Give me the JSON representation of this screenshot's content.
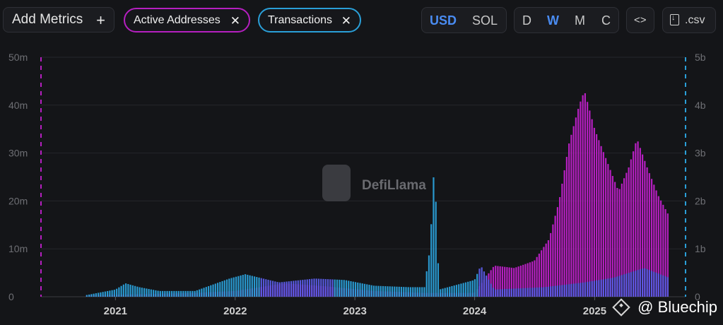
{
  "toolbar": {
    "add_metrics_label": "Add Metrics",
    "add_icon": "+",
    "metric_chips": [
      {
        "label": "Active Addresses",
        "color": "#b51fc0"
      },
      {
        "label": "Transactions",
        "color": "#2a9fd8"
      }
    ],
    "remove_icon": "✕",
    "currency_options": [
      "USD",
      "SOL"
    ],
    "currency_selected": "USD",
    "period_options": [
      "D",
      "W",
      "M",
      "C"
    ],
    "period_selected": "W",
    "embed_label": "<>",
    "csv_label": ".csv"
  },
  "watermark": "DefiLlama",
  "attribution": "@ Bluechip",
  "colors": {
    "background": "#141518",
    "active_addresses": "#b51fc0",
    "transactions": "#2a9fd8",
    "selected": "#4a8cf2",
    "overlap": "#5a5ce6"
  },
  "chart_data": {
    "type": "bar",
    "x_ticks": [
      "2021",
      "2022",
      "2023",
      "2024",
      "2025"
    ],
    "y_left": {
      "ticks": [
        "0",
        "10m",
        "20m",
        "30m",
        "40m",
        "50m"
      ],
      "ylim": [
        0,
        50000000
      ]
    },
    "y_right": {
      "ticks": [
        "0",
        "1b",
        "2b",
        "3b",
        "4b",
        "5b"
      ],
      "ylim": [
        0,
        5000000000
      ]
    },
    "grid": true,
    "series": [
      {
        "name": "Active Addresses",
        "axis": "left",
        "color": "#b51fc0",
        "points": [
          [
            "2020-10-01",
            0.3
          ],
          [
            "2021-03-01",
            0.5
          ],
          [
            "2021-09-01",
            0.8
          ],
          [
            "2022-01-01",
            1.2
          ],
          [
            "2022-06-01",
            2.8
          ],
          [
            "2022-10-01",
            2.2
          ],
          [
            "2023-03-01",
            1.2
          ],
          [
            "2023-08-01",
            0.8
          ],
          [
            "2024-01-01",
            0.8
          ],
          [
            "2024-03-01",
            6.5
          ],
          [
            "2024-05-01",
            6
          ],
          [
            "2024-07-01",
            7.5
          ],
          [
            "2024-08-15",
            12
          ],
          [
            "2024-09-15",
            20
          ],
          [
            "2024-10-15",
            32
          ],
          [
            "2024-11-15",
            40
          ],
          [
            "2024-12-01",
            43
          ],
          [
            "2025-01-01",
            35
          ],
          [
            "2025-02-15",
            27
          ],
          [
            "2025-03-15",
            22
          ],
          [
            "2025-04-15",
            27
          ],
          [
            "2025-05-10",
            33
          ],
          [
            "2025-06-10",
            27
          ],
          [
            "2025-07-15",
            21
          ],
          [
            "2025-08-15",
            17
          ]
        ]
      },
      {
        "name": "Transactions",
        "axis": "right",
        "color": "#2a9fd8",
        "points": [
          [
            "2020-10-01",
            30000000
          ],
          [
            "2021-01-01",
            150000000
          ],
          [
            "2021-02-01",
            280000000
          ],
          [
            "2021-03-15",
            200000000
          ],
          [
            "2021-05-15",
            120000000
          ],
          [
            "2021-09-01",
            120000000
          ],
          [
            "2021-12-15",
            380000000
          ],
          [
            "2022-02-01",
            470000000
          ],
          [
            "2022-05-15",
            300000000
          ],
          [
            "2022-09-01",
            380000000
          ],
          [
            "2022-12-01",
            350000000
          ],
          [
            "2023-03-01",
            230000000
          ],
          [
            "2023-06-15",
            200000000
          ],
          [
            "2023-08-01",
            200000000
          ],
          [
            "2023-08-20",
            1100000000
          ],
          [
            "2023-08-27",
            2550000000
          ],
          [
            "2023-09-03",
            2350000000
          ],
          [
            "2023-09-15",
            150000000
          ],
          [
            "2024-01-01",
            350000000
          ],
          [
            "2024-01-20",
            650000000
          ],
          [
            "2024-03-01",
            150000000
          ],
          [
            "2024-08-01",
            200000000
          ],
          [
            "2024-12-01",
            300000000
          ],
          [
            "2025-03-01",
            400000000
          ],
          [
            "2025-06-01",
            600000000
          ],
          [
            "2025-08-15",
            400000000
          ]
        ]
      }
    ]
  }
}
